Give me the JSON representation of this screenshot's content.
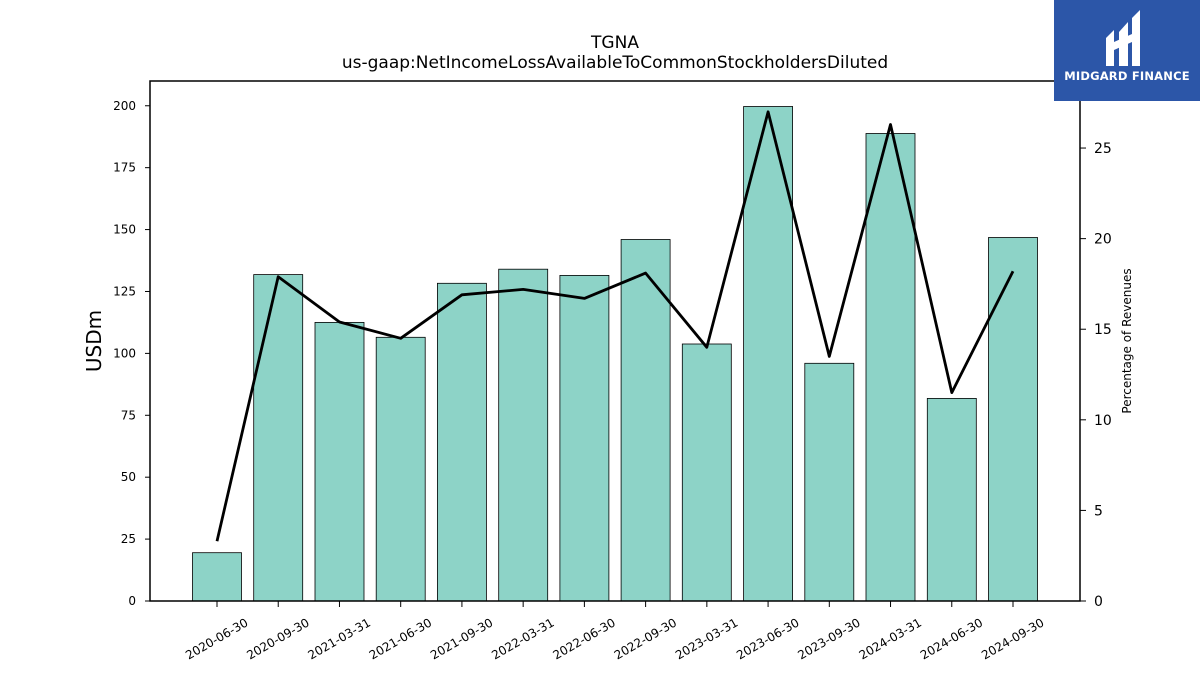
{
  "chart_data": {
    "type": "bar",
    "title": "TGNA",
    "subtitle": "us-gaap:NetIncomeLossAvailableToCommonStockholdersDiluted",
    "categories": [
      "2020-06-30",
      "2020-09-30",
      "2021-03-31",
      "2021-06-30",
      "2021-09-30",
      "2022-03-31",
      "2022-06-30",
      "2022-09-30",
      "2023-03-31",
      "2023-06-30",
      "2023-09-30",
      "2024-03-31",
      "2024-06-30",
      "2024-09-30"
    ],
    "series": [
      {
        "type": "bar",
        "axis": "left",
        "values": [
          19.5,
          131.8,
          112.5,
          106.5,
          128.3,
          134.0,
          131.5,
          146.0,
          103.8,
          199.7,
          96.0,
          188.8,
          81.8,
          146.8
        ]
      },
      {
        "type": "line",
        "axis": "right",
        "values": [
          3.3,
          17.9,
          15.4,
          14.5,
          16.9,
          17.2,
          16.7,
          18.1,
          14.0,
          27.0,
          13.5,
          26.3,
          11.5,
          18.2
        ]
      }
    ],
    "ylabel": "USDm",
    "ylim": [
      0,
      210
    ],
    "yticks": [
      0,
      25,
      50,
      75,
      100,
      125,
      150,
      175,
      200
    ],
    "y2label": "Percentage of Revenues",
    "y2lim": [
      0,
      28.7
    ],
    "y2ticks": [
      0,
      5,
      10,
      15,
      20,
      25
    ],
    "grid": false,
    "colors": {
      "bar_fill": "#8dd3c7",
      "bar_edge": "#000000",
      "line": "#000000"
    }
  },
  "logo": {
    "text": "MIDGARD FINANCE",
    "color": "#2c56a8"
  }
}
